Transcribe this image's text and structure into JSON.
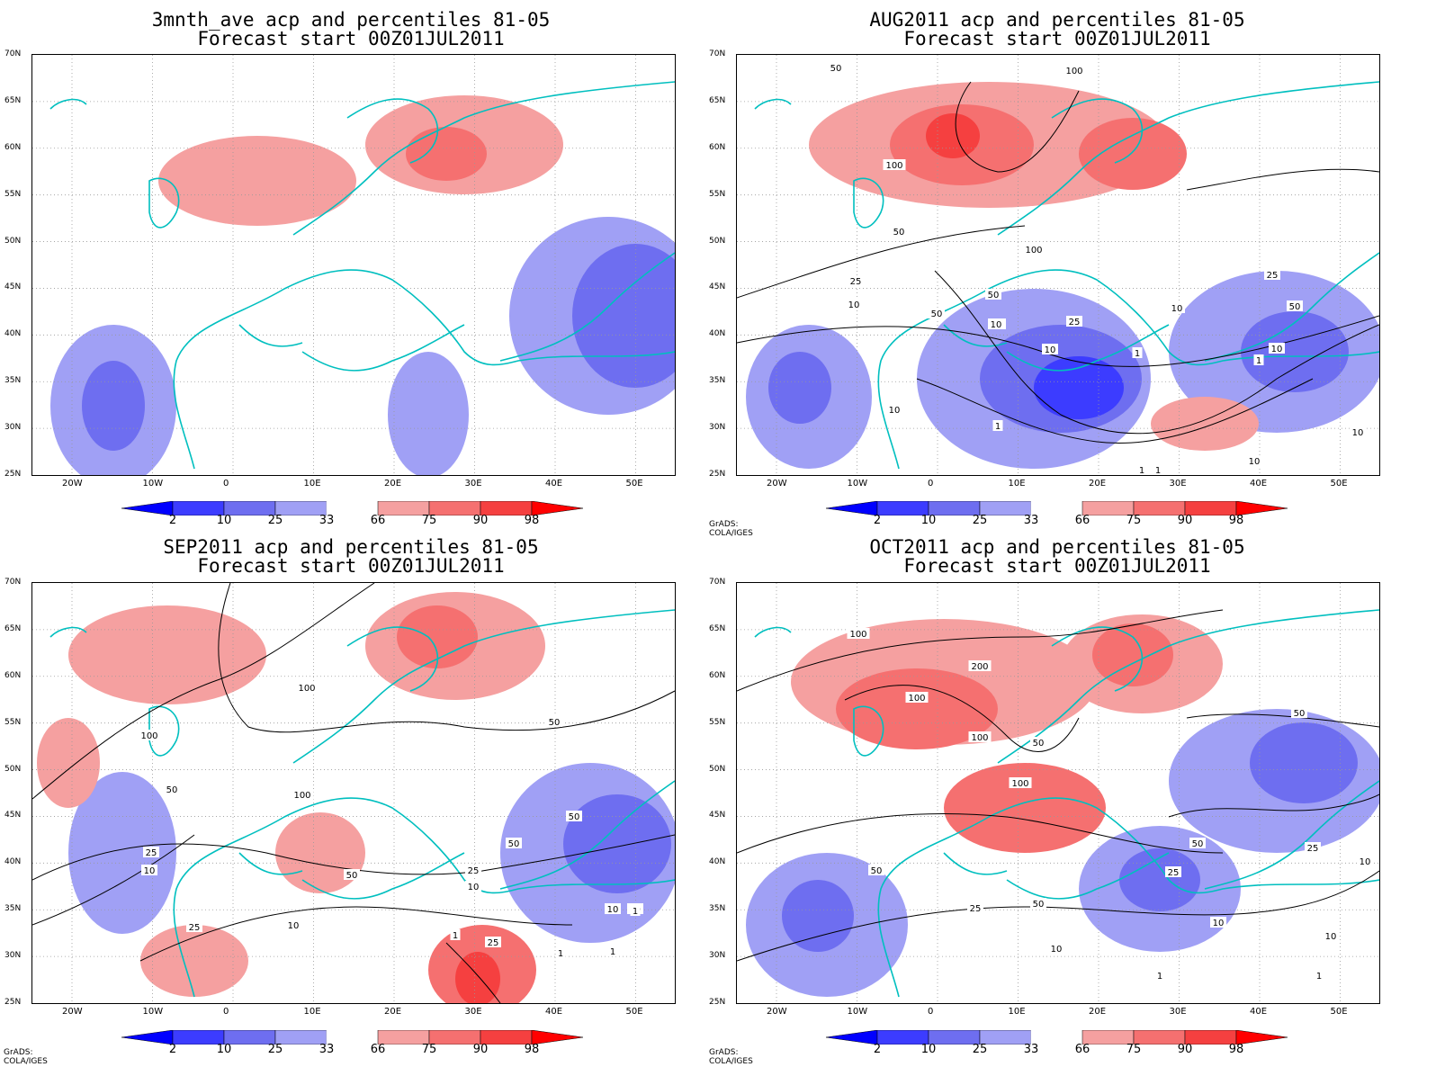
{
  "panels": [
    {
      "title_line1": "3mnth_ave acp and percentiles 81-05",
      "title_line2": "Forecast start 00Z01JUL2011",
      "credit": ""
    },
    {
      "title_line1": "AUG2011 acp and percentiles 81-05",
      "title_line2": "Forecast start 00Z01JUL2011",
      "credit": "GrADS: COLA/IGES"
    },
    {
      "title_line1": "SEP2011 acp and percentiles 81-05",
      "title_line2": "Forecast start 00Z01JUL2011",
      "credit": "GrADS: COLA/IGES"
    },
    {
      "title_line1": "OCT2011 acp and percentiles 81-05",
      "title_line2": "Forecast start 00Z01JUL2011",
      "credit": "GrADS: COLA/IGES"
    }
  ],
  "lat_labels": [
    "70N",
    "65N",
    "60N",
    "55N",
    "50N",
    "45N",
    "40N",
    "35N",
    "30N",
    "25N"
  ],
  "lon_labels": [
    "20W",
    "10W",
    "0",
    "10E",
    "20E",
    "30E",
    "40E",
    "50E"
  ],
  "colorbar_labels": [
    "2",
    "10",
    "25",
    "33",
    "66",
    "75",
    "90",
    "98"
  ],
  "colorbar_colors": [
    "#0000ff",
    "#3c3cff",
    "#6e6ef0",
    "#a0a0f5",
    "#ffffff",
    "#f5a0a0",
    "#f57070",
    "#f54040",
    "#ff0000"
  ],
  "contour_labels": [
    [],
    [
      "50",
      "100",
      "100",
      "50",
      "25",
      "10",
      "100",
      "50",
      "50",
      "10",
      "25",
      "10",
      "1",
      "1",
      "10",
      "25",
      "10",
      "50",
      "10",
      "1",
      "50",
      "10",
      "1",
      "10",
      "10",
      "1"
    ],
    [
      "100",
      "100",
      "50",
      "50",
      "100",
      "50",
      "25",
      "10",
      "25",
      "50",
      "25",
      "10",
      "50",
      "10",
      "10",
      "1",
      "1",
      "25",
      "10",
      "1",
      "1"
    ],
    [
      "100",
      "200",
      "100",
      "100",
      "50",
      "100",
      "50",
      "50",
      "25",
      "50",
      "25",
      "10",
      "50",
      "50",
      "25",
      "10",
      "10",
      "1",
      "1",
      "10"
    ]
  ],
  "colors": {
    "coast": "#00bfbf",
    "contour": "#000000",
    "blue": "#6e6ef0",
    "red": "#f57070"
  }
}
